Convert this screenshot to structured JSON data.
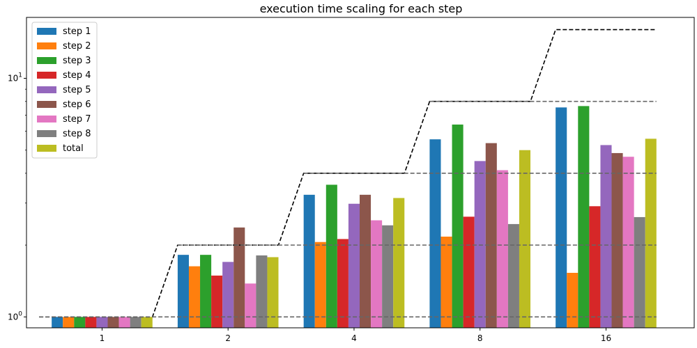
{
  "chart_data": {
    "type": "bar",
    "title": "execution time scaling for each step",
    "xlabel": "",
    "ylabel": "",
    "y_scale": "log",
    "ylim": [
      0.9,
      18
    ],
    "y_ticks": [
      {
        "value": 1,
        "base": "10",
        "exp": "0"
      },
      {
        "value": 10,
        "base": "10",
        "exp": "1"
      }
    ],
    "categories": [
      "1",
      "2",
      "4",
      "8",
      "16"
    ],
    "legend_position": "upper-left",
    "grid": false,
    "series": [
      {
        "name": "step 1",
        "color": "#1f77b4",
        "values": [
          1.0,
          1.82,
          3.25,
          5.55,
          7.55
        ]
      },
      {
        "name": "step 2",
        "color": "#ff7f0e",
        "values": [
          1.0,
          1.63,
          2.06,
          2.17,
          1.53
        ]
      },
      {
        "name": "step 3",
        "color": "#2ca02c",
        "values": [
          1.0,
          1.82,
          3.58,
          6.4,
          7.65
        ]
      },
      {
        "name": "step 4",
        "color": "#d62728",
        "values": [
          1.0,
          1.49,
          2.12,
          2.63,
          2.91
        ]
      },
      {
        "name": "step 5",
        "color": "#9467bd",
        "values": [
          1.0,
          1.7,
          2.98,
          4.5,
          5.25
        ]
      },
      {
        "name": "step 6",
        "color": "#8c564b",
        "values": [
          1.0,
          2.37,
          3.25,
          5.35,
          4.86
        ]
      },
      {
        "name": "step 7",
        "color": "#e377c2",
        "values": [
          1.0,
          1.38,
          2.54,
          4.12,
          4.69
        ]
      },
      {
        "name": "step 8",
        "color": "#7f7f7f",
        "values": [
          1.0,
          1.81,
          2.42,
          2.45,
          2.62
        ]
      },
      {
        "name": "total",
        "color": "#bcbd22",
        "values": [
          1.0,
          1.78,
          3.15,
          5.0,
          5.58
        ]
      }
    ],
    "reference_lines": [
      {
        "style": "black-dashed",
        "x": [
          -0.5,
          0.4,
          0.6,
          1.4,
          1.6,
          2.4,
          2.6,
          3.4,
          3.6,
          4.4
        ],
        "y": [
          1,
          1,
          2,
          2,
          4,
          4,
          8,
          8,
          16,
          16
        ]
      },
      {
        "style": "gray-dashed",
        "x": [
          -0.5,
          4.4
        ],
        "y": [
          1,
          1
        ]
      },
      {
        "style": "gray-dashed",
        "x": [
          0.6,
          4.4
        ],
        "y": [
          2,
          2
        ]
      },
      {
        "style": "gray-dashed",
        "x": [
          1.6,
          4.4
        ],
        "y": [
          4,
          4
        ]
      },
      {
        "style": "gray-dashed",
        "x": [
          2.6,
          4.4
        ],
        "y": [
          8,
          8
        ]
      }
    ]
  }
}
